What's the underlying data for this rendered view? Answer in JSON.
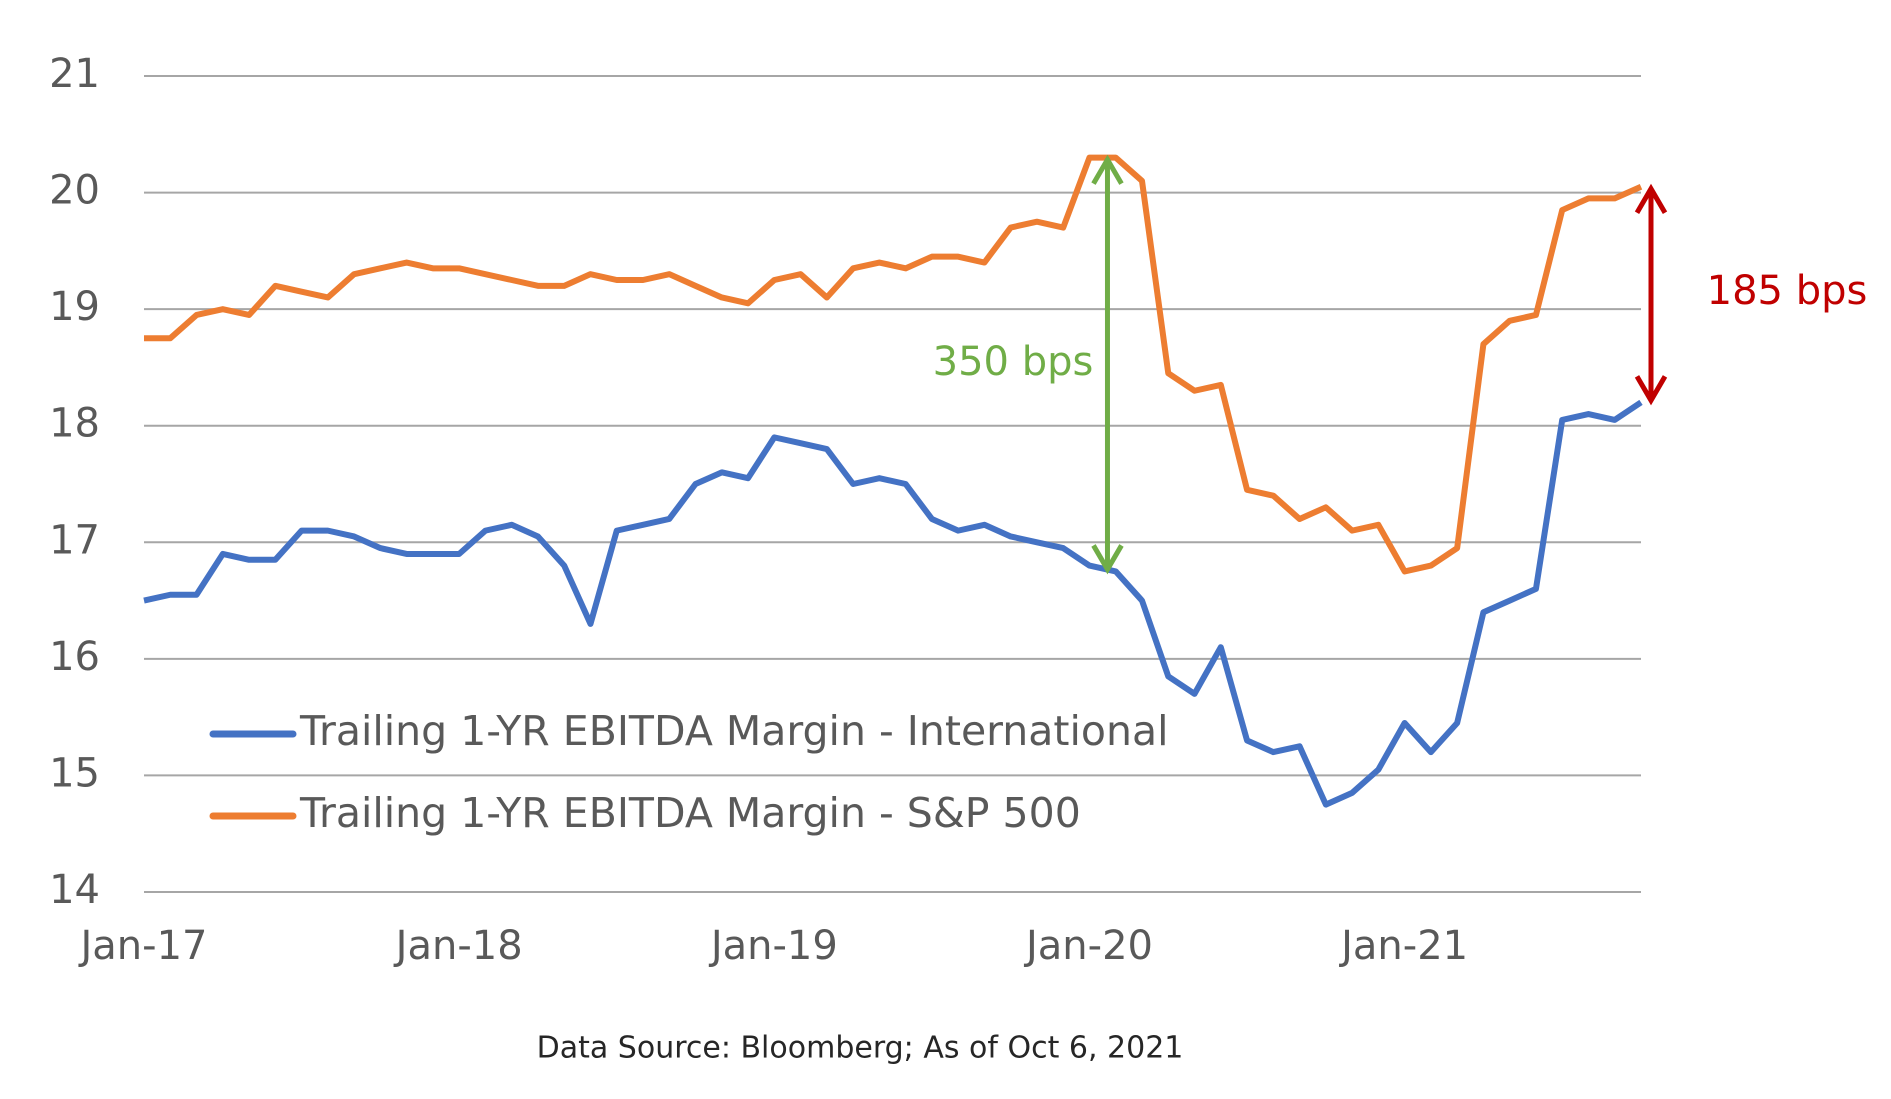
{
  "chart_data": {
    "type": "line",
    "x": [
      "Jan-17",
      "Feb-17",
      "Mar-17",
      "Apr-17",
      "May-17",
      "Jun-17",
      "Jul-17",
      "Aug-17",
      "Sep-17",
      "Oct-17",
      "Nov-17",
      "Dec-17",
      "Jan-18",
      "Feb-18",
      "Mar-18",
      "Apr-18",
      "May-18",
      "Jun-18",
      "Jul-18",
      "Aug-18",
      "Sep-18",
      "Oct-18",
      "Nov-18",
      "Dec-18",
      "Jan-19",
      "Feb-19",
      "Mar-19",
      "Apr-19",
      "May-19",
      "Jun-19",
      "Jul-19",
      "Aug-19",
      "Sep-19",
      "Oct-19",
      "Nov-19",
      "Dec-19",
      "Jan-20",
      "Feb-20",
      "Mar-20",
      "Apr-20",
      "May-20",
      "Jun-20",
      "Jul-20",
      "Aug-20",
      "Sep-20",
      "Oct-20",
      "Nov-20",
      "Dec-20",
      "Jan-21",
      "Feb-21",
      "Mar-21",
      "Apr-21",
      "May-21",
      "Jun-21",
      "Jul-21",
      "Aug-21",
      "Sep-21",
      "Oct-21"
    ],
    "xticks": [
      "Jan-17",
      "Jan-18",
      "Jan-19",
      "Jan-20",
      "Jan-21"
    ],
    "series": [
      {
        "name": "Trailing 1-YR EBITDA Margin - International",
        "color": "#4472c4",
        "values": [
          16.5,
          16.55,
          16.55,
          16.9,
          16.85,
          16.85,
          17.1,
          17.1,
          17.05,
          16.95,
          16.9,
          16.9,
          16.9,
          17.1,
          17.15,
          17.05,
          16.8,
          16.3,
          17.1,
          17.15,
          17.2,
          17.5,
          17.6,
          17.55,
          17.9,
          17.85,
          17.8,
          17.5,
          17.55,
          17.5,
          17.2,
          17.1,
          17.15,
          17.05,
          17.0,
          16.95,
          16.8,
          16.75,
          16.5,
          15.85,
          15.7,
          16.1,
          15.3,
          15.2,
          15.25,
          14.75,
          14.85,
          15.05,
          15.45,
          15.2,
          15.45,
          16.4,
          16.5,
          16.6,
          18.05,
          18.1,
          18.05,
          18.2
        ]
      },
      {
        "name": "Trailing 1-YR EBITDA Margin - S&P 500",
        "color": "#ed7d31",
        "values": [
          18.75,
          18.75,
          18.95,
          19.0,
          18.95,
          19.2,
          19.15,
          19.1,
          19.3,
          19.35,
          19.4,
          19.35,
          19.35,
          19.3,
          19.25,
          19.2,
          19.2,
          19.3,
          19.25,
          19.25,
          19.3,
          19.2,
          19.1,
          19.05,
          19.25,
          19.3,
          19.1,
          19.35,
          19.4,
          19.35,
          19.45,
          19.45,
          19.4,
          19.7,
          19.75,
          19.7,
          20.3,
          20.3,
          20.1,
          18.45,
          18.3,
          18.35,
          17.45,
          17.4,
          17.2,
          17.3,
          17.1,
          17.15,
          16.75,
          16.8,
          16.95,
          18.7,
          18.9,
          18.95,
          19.85,
          19.95,
          19.95,
          20.05
        ]
      }
    ],
    "ylim": [
      14,
      21
    ],
    "yticks": [
      14,
      15,
      16,
      17,
      18,
      19,
      20,
      21
    ],
    "grid": true,
    "annotations": [
      {
        "text": "350 bps",
        "color": "#70ad47"
      },
      {
        "text": "185 bps",
        "color": "#c00000"
      }
    ],
    "source": "Data Source: Bloomberg; As of Oct 6, 2021"
  }
}
